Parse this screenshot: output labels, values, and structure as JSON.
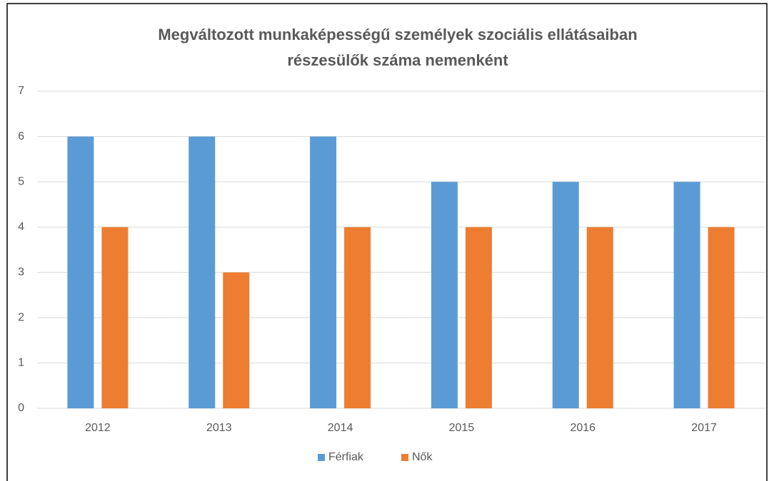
{
  "chart_data": {
    "type": "bar",
    "title": [
      "Megváltozott munkaképességű személyek szociális ellátásaiban",
      "részesülők száma nemenként"
    ],
    "categories": [
      "2012",
      "2013",
      "2014",
      "2015",
      "2016",
      "2017"
    ],
    "series": [
      {
        "name": "Férfiak",
        "color": "#5b9bd5",
        "values": [
          6,
          6,
          6,
          5,
          5,
          5
        ]
      },
      {
        "name": "Nők",
        "color": "#ed7d31",
        "values": [
          4,
          3,
          4,
          4,
          4,
          4
        ]
      }
    ],
    "ylim": [
      0,
      7
    ],
    "yticks": [
      0,
      1,
      2,
      3,
      4,
      5,
      6,
      7
    ],
    "grid": true,
    "legend": "bottom"
  }
}
